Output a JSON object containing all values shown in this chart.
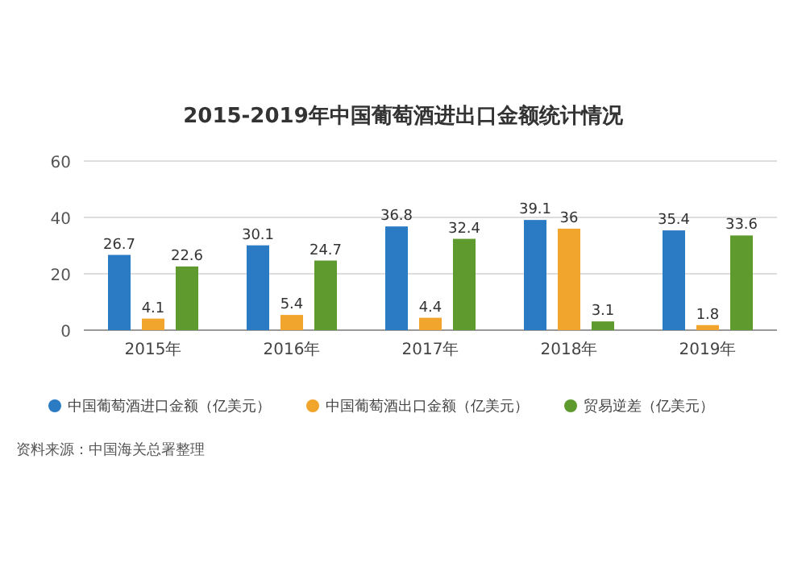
{
  "chart_data": {
    "type": "bar",
    "title": "2015-2019年中国葡萄酒进出口金额统计情况",
    "categories": [
      "2015年",
      "2016年",
      "2017年",
      "2018年",
      "2019年"
    ],
    "series": [
      {
        "name": "中国葡萄酒进口金额（亿美元）",
        "color": "#2b7bc4",
        "values": [
          26.7,
          30.1,
          36.8,
          39.1,
          35.4
        ]
      },
      {
        "name": "中国葡萄酒出口金额（亿美元）",
        "color": "#f2a52c",
        "values": [
          4.1,
          5.4,
          4.4,
          36,
          1.8
        ]
      },
      {
        "name": "贸易逆差（亿美元）",
        "color": "#5f9a2e",
        "values": [
          22.6,
          24.7,
          32.4,
          3.1,
          33.6
        ]
      }
    ],
    "ylim": [
      0,
      60
    ],
    "yticks": [
      0,
      20,
      40,
      60
    ],
    "grid": "y",
    "legend": "bottom",
    "data_labels": true,
    "annotations": [
      "资料来源：中国海关总署整理"
    ]
  }
}
